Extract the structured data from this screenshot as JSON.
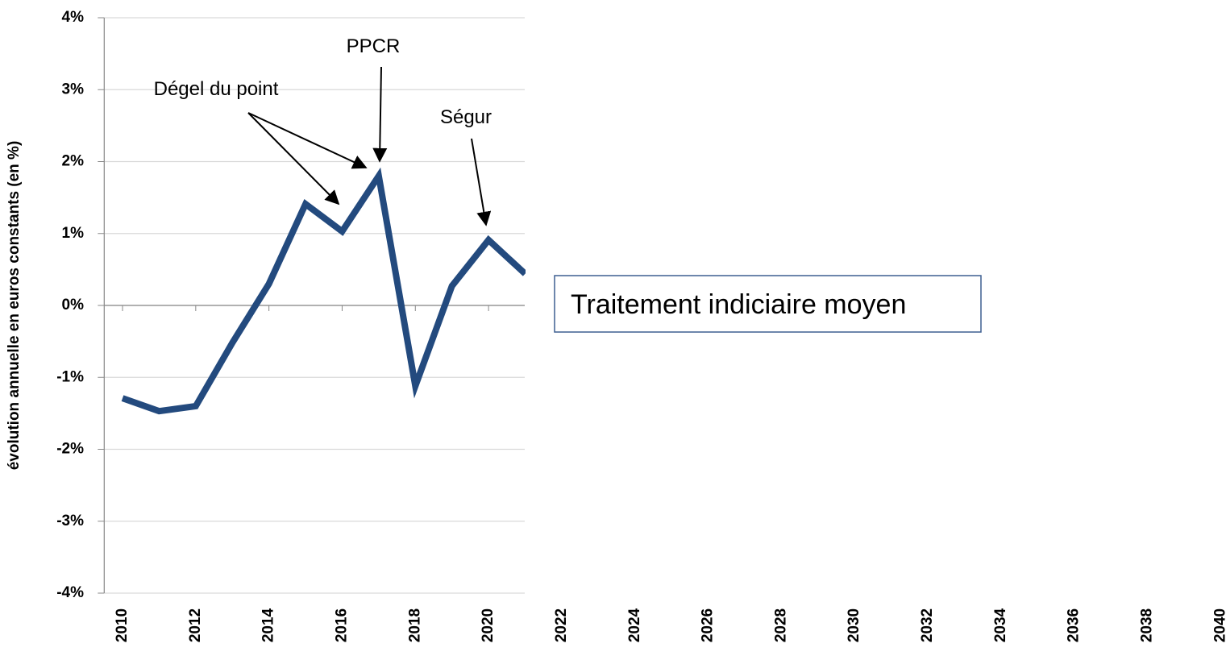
{
  "chart_data": {
    "type": "line",
    "y_label": "évolution annuelle en euros constants (en %)",
    "x": [
      2010,
      2011,
      2012,
      2013,
      2014,
      2015,
      2016,
      2017,
      2018,
      2019,
      2020,
      2021,
      2022,
      2023,
      2024,
      2025,
      2026,
      2027,
      2028,
      2029,
      2030,
      2031,
      2032,
      2033,
      2034,
      2035,
      2036,
      2037,
      2038,
      2039,
      2040
    ],
    "series": [
      {
        "name": "Traitement indiciaire moyen",
        "color": "#234a7e",
        "values": [
          -1.29,
          -1.47,
          -1.4,
          -0.52,
          0.3,
          1.41,
          1.03,
          1.8,
          -1.12,
          0.27,
          0.91,
          0.44,
          null,
          null,
          null,
          null,
          null,
          null,
          null,
          null,
          null,
          null,
          null,
          null,
          null,
          null,
          null,
          null,
          null,
          null,
          null
        ]
      }
    ],
    "xlim": [
      2009.5,
      2040.5
    ],
    "xticks": [
      2010,
      2012,
      2014,
      2016,
      2018,
      2020,
      2022,
      2024,
      2026,
      2028,
      2030,
      2032,
      2034,
      2036,
      2038,
      2040
    ],
    "ylim": [
      -4,
      4
    ],
    "yticks": [
      {
        "value": -4,
        "label": "-4%"
      },
      {
        "value": -3,
        "label": "-3%"
      },
      {
        "value": -2,
        "label": "-2%"
      },
      {
        "value": -1,
        "label": "-1%"
      },
      {
        "value": 0,
        "label": "0%"
      },
      {
        "value": 1,
        "label": "1%"
      },
      {
        "value": 2,
        "label": "2%"
      },
      {
        "value": 3,
        "label": "3%"
      },
      {
        "value": 4,
        "label": "4%"
      }
    ],
    "grid": true,
    "annotations": [
      "Dégel du point",
      "PPCR",
      "Ségur"
    ]
  }
}
